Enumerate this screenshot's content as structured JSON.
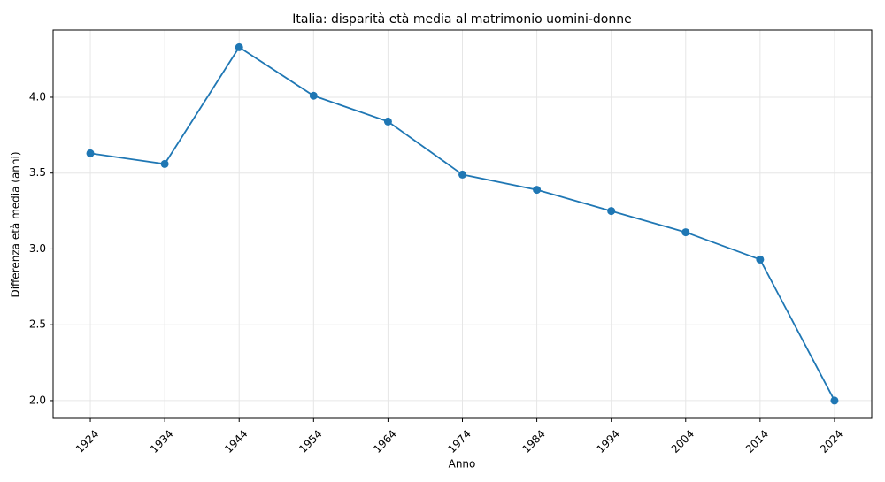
{
  "chart_data": {
    "type": "line",
    "title": "Italia: disparità età media al matrimonio uomini-donne",
    "xlabel": "Anno",
    "ylabel": "Differenza età media (anni)",
    "x": [
      1924,
      1934,
      1944,
      1954,
      1964,
      1974,
      1984,
      1994,
      2004,
      2014,
      2024
    ],
    "series": [
      {
        "color": "#1f77b4",
        "values": [
          3.63,
          3.56,
          4.33,
          4.01,
          3.84,
          3.49,
          3.39,
          3.25,
          3.11,
          2.93,
          2.0
        ]
      }
    ],
    "xlim": [
      1919,
      2029
    ],
    "xticks": [
      1924,
      1934,
      1944,
      1954,
      1964,
      1974,
      1984,
      1994,
      2004,
      2014,
      2024
    ],
    "ylim": [
      1.883,
      4.443
    ],
    "yticks": [
      {
        "value": 2.0,
        "label": "2.0"
      },
      {
        "value": 2.5,
        "label": "2.5"
      },
      {
        "value": 3.0,
        "label": "3.0"
      },
      {
        "value": 3.5,
        "label": "3.5"
      },
      {
        "value": 4.0,
        "label": "4.0"
      }
    ],
    "grid": true
  }
}
